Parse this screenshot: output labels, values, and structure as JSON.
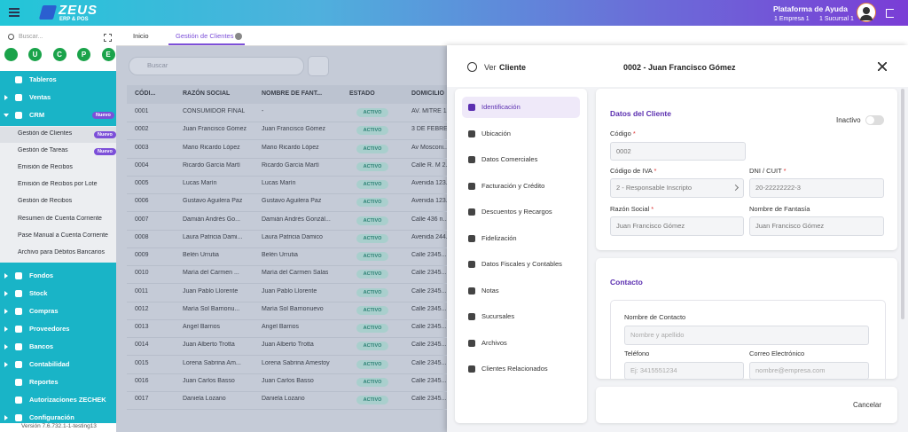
{
  "header": {
    "brand": "ZEUS",
    "brand_sub": "ERP & POS",
    "help": "Plataforma de Ayuda",
    "company": "1 Empresa 1",
    "branch": "1 Sucursal 1"
  },
  "sidebar": {
    "search": "Buscar...",
    "avatars": [
      "U",
      "C",
      "P",
      "E"
    ],
    "menu": [
      {
        "label": "Tableros"
      },
      {
        "label": "Ventas",
        "submenu": true
      },
      {
        "label": "CRM",
        "submenu": true,
        "badge": "Nuevo",
        "items": [
          {
            "label": "Gestión de Clientes",
            "badge": "Nuevo"
          },
          {
            "label": "Gestión de Tareas",
            "badge": "Nuevo"
          },
          {
            "label": "Emisión de Recibos"
          },
          {
            "label": "Emisión de Recibos por Lote"
          },
          {
            "label": "Gestión de Recibos"
          },
          {
            "label": "Resumen de Cuenta Corriente"
          },
          {
            "label": "Pase Manual a Cuenta Corriente"
          },
          {
            "label": "Archivo para Débitos Bancarios"
          }
        ]
      },
      {
        "label": "Fondos",
        "submenu": true
      },
      {
        "label": "Stock",
        "submenu": true
      },
      {
        "label": "Compras",
        "submenu": true
      },
      {
        "label": "Proveedores",
        "submenu": true
      },
      {
        "label": "Bancos",
        "submenu": true
      },
      {
        "label": "Contabilidad",
        "submenu": true
      },
      {
        "label": "Reportes"
      },
      {
        "label": "Autorizaciones ZECHEK"
      },
      {
        "label": "Configuración",
        "submenu": true
      }
    ],
    "version": "Versión 7.6.732.1-1-testing13"
  },
  "tabs": [
    "Inicio",
    "Gestión de Clientes"
  ],
  "active_tab": 1,
  "table": {
    "search": "Buscar",
    "columns": [
      "CÓDI...",
      "RAZÓN SOCIAL",
      "NOMBRE DE FANT...",
      "ESTADO",
      "DOMICILIO"
    ],
    "rows": [
      [
        "0001",
        "CONSUMIDOR FINAL",
        "-",
        "ACTIVO",
        "AV. MITRE 1..."
      ],
      [
        "0002",
        "Juan Francisco Gómez",
        "Juan Francisco Gómez",
        "ACTIVO",
        "3 DE FEBRE..."
      ],
      [
        "0003",
        "Mario Ricardo López",
        "Mario Ricardo López",
        "ACTIVO",
        "Av Mosconi..."
      ],
      [
        "0004",
        "Ricardo García Martí",
        "Ricardo García Martí",
        "ACTIVO",
        "Calle R. M 2..."
      ],
      [
        "0005",
        "Lucas Marín",
        "Lucas Marín",
        "ACTIVO",
        "Avenida 123..."
      ],
      [
        "0006",
        "Gustavo Aguilera Paz",
        "Gustavo Aguilera Paz",
        "ACTIVO",
        "Avenida 123..."
      ],
      [
        "0007",
        "Damián Andrés Go...",
        "Damián Andrés Gonzál...",
        "ACTIVO",
        "Calle 436 n..."
      ],
      [
        "0008",
        "Laura Patricia Dami...",
        "Laura Patricia Damico",
        "ACTIVO",
        "Avenida 244..."
      ],
      [
        "0009",
        "Belén Urrutia",
        "Belén Urrutia",
        "ACTIVO",
        "Calle 2345..."
      ],
      [
        "0010",
        "María del Carmen ...",
        "María del Carmen Salas",
        "ACTIVO",
        "Calle 2345..."
      ],
      [
        "0011",
        "Juan Pablo Llorente",
        "Juan Pablo Llorente",
        "ACTIVO",
        "Calle 2345..."
      ],
      [
        "0012",
        "María Sol Barrionu...",
        "María Sol Barrionuevo",
        "ACTIVO",
        "Calle 2345..."
      ],
      [
        "0013",
        "Angel Barrios",
        "Angel Barrios",
        "ACTIVO",
        "Calle 2345..."
      ],
      [
        "0014",
        "Juan Alberto Trotta",
        "Juan Alberto Trotta",
        "ACTIVO",
        "Calle 2345..."
      ],
      [
        "0015",
        "Lorena Sabrina Am...",
        "Lorena Sabrina Amestoy",
        "ACTIVO",
        "Calle 2345..."
      ],
      [
        "0016",
        "Juan Carlos Basso",
        "Juan Carlos Basso",
        "ACTIVO",
        "Calle 2345..."
      ],
      [
        "0017",
        "Daniela Lozano",
        "Daniela Lozano",
        "ACTIVO",
        "Calle 2345..."
      ]
    ]
  },
  "drawer": {
    "title_prefix": "Ver",
    "title_entity": "Cliente",
    "record": "0002 - Juan Francisco Gómez",
    "nav": [
      "Identificación",
      "Ubicación",
      "Datos Comerciales",
      "Facturación y Crédito",
      "Descuentos y Recargos",
      "Fidelización",
      "Datos Fiscales y Contables",
      "Notas",
      "Sucursales",
      "Archivos",
      "Clientes Relacionados"
    ],
    "active_nav": 0,
    "client": {
      "title": "Datos del Cliente",
      "toggle": "Inactivo",
      "fields": [
        {
          "label": "Código",
          "required": "*",
          "value": "0002"
        },
        {
          "label": "Código de IVA",
          "required": "*",
          "value": "2 - Responsable Inscripto",
          "type": "select"
        },
        {
          "label": "DNI / CUIT",
          "required": "*",
          "value": "20-22222222-3"
        },
        {
          "label": "Razón Social",
          "required": "*",
          "value": "Juan Francisco Gómez"
        },
        {
          "label": "Nombre de Fantasía",
          "value": "Juan Francisco Gómez"
        }
      ]
    },
    "contact": {
      "title": "Contacto",
      "fields": [
        {
          "label": "Nombre de Contacto",
          "placeholder": "Nombre y apellido"
        },
        {
          "label": "Teléfono",
          "placeholder": "Ej: 3415551234"
        },
        {
          "label": "Correo Electrónico",
          "placeholder": "nombre@empresa.com"
        }
      ]
    },
    "cancel": "Cancelar"
  }
}
